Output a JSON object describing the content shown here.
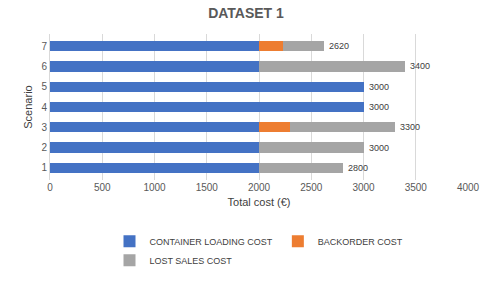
{
  "chart_data": {
    "type": "bar",
    "title": "DATASET 1",
    "orientation": "horizontal",
    "stacked": true,
    "x_label": "Total cost (€)",
    "y_label": "Scenario",
    "categories": [
      "1",
      "2",
      "3",
      "4",
      "5",
      "6",
      "7"
    ],
    "series": [
      {
        "name": "CONTAINER LOADING COST",
        "color": "#4472c4",
        "values": [
          2000,
          2000,
          2000,
          3000,
          3000,
          2000,
          2000
        ]
      },
      {
        "name": "BACKORDER COST",
        "color": "#ed7d31",
        "values": [
          0,
          0,
          300,
          0,
          0,
          0,
          230
        ]
      },
      {
        "name": "LOST SALES COST",
        "color": "#a5a5a5",
        "values": [
          800,
          1000,
          1000,
          0,
          0,
          1400,
          390
        ]
      }
    ],
    "totals": [
      2800,
      3000,
      3300,
      3000,
      3000,
      3400,
      2620
    ],
    "xlim": [
      0,
      4000
    ],
    "xticks": [
      0,
      500,
      1000,
      1500,
      2000,
      2500,
      3000,
      3500,
      4000
    ],
    "grid": true,
    "legend": "bottom"
  }
}
